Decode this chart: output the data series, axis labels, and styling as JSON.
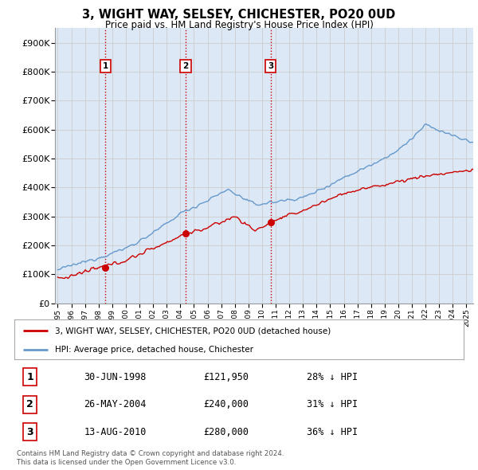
{
  "title": "3, WIGHT WAY, SELSEY, CHICHESTER, PO20 0UD",
  "subtitle": "Price paid vs. HM Land Registry's House Price Index (HPI)",
  "ylabel_ticks": [
    "£0",
    "£100K",
    "£200K",
    "£300K",
    "£400K",
    "£500K",
    "£600K",
    "£700K",
    "£800K",
    "£900K"
  ],
  "ytick_values": [
    0,
    100000,
    200000,
    300000,
    400000,
    500000,
    600000,
    700000,
    800000,
    900000
  ],
  "ylim": [
    0,
    950000
  ],
  "xlim_start": 1994.8,
  "xlim_end": 2025.5,
  "xtick_years": [
    1995,
    1996,
    1997,
    1998,
    1999,
    2000,
    2001,
    2002,
    2003,
    2004,
    2005,
    2006,
    2007,
    2008,
    2009,
    2010,
    2011,
    2012,
    2013,
    2014,
    2015,
    2016,
    2017,
    2018,
    2019,
    2020,
    2021,
    2022,
    2023,
    2024,
    2025
  ],
  "sale_dates": [
    1998.5,
    2004.4,
    2010.62
  ],
  "sale_prices": [
    121950,
    240000,
    280000
  ],
  "sale_labels": [
    "1",
    "2",
    "3"
  ],
  "vline_color": "#cc0000",
  "grid_color": "#cccccc",
  "hpi_color": "#6699cc",
  "price_color": "#cc0000",
  "legend_entries": [
    "3, WIGHT WAY, SELSEY, CHICHESTER, PO20 0UD (detached house)",
    "HPI: Average price, detached house, Chichester"
  ],
  "table_data": [
    [
      "1",
      "30-JUN-1998",
      "£121,950",
      "28% ↓ HPI"
    ],
    [
      "2",
      "26-MAY-2004",
      "£240,000",
      "31% ↓ HPI"
    ],
    [
      "3",
      "13-AUG-2010",
      "£280,000",
      "36% ↓ HPI"
    ]
  ],
  "footnote": "Contains HM Land Registry data © Crown copyright and database right 2024.\nThis data is licensed under the Open Government Licence v3.0.",
  "background_color": "#ffffff",
  "plot_bg_color": "#dce8f5"
}
